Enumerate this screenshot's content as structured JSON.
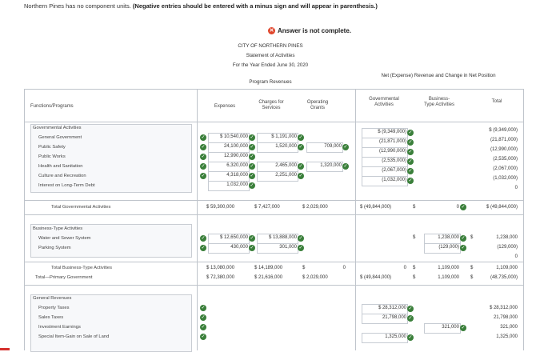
{
  "instructions": {
    "text": "Northern Pines has no component units.",
    "bold": "(Negative entries should be entered with a minus sign and will appear in parenthesis.)"
  },
  "banner": "Answer is not complete.",
  "statement": {
    "entity": "CITY OF NORTHERN PINES",
    "title": "Statement of Activities",
    "period": "For the Year Ended June 30, 2020",
    "program_revenues": "Program Revenues",
    "net_section": "Net (Expense) Revenue and Change in Net Position"
  },
  "columns": {
    "functions": "Functions/Programs",
    "expenses": "Expenses",
    "charges": [
      "Charges for",
      "Services"
    ],
    "operating": [
      "Operating",
      "Grants"
    ],
    "governmental": [
      "Governmental",
      "Activities"
    ],
    "business": [
      "Business-",
      "Type Activities"
    ],
    "total": "Total"
  },
  "gov": {
    "header": "Governmental Activities",
    "rows": [
      {
        "label": "General Government",
        "expenses": "$ 10,540,000",
        "charges": "$ 1,191,000",
        "operating": "",
        "gov": "$ (9,349,000)",
        "total": "$ (9,349,000)"
      },
      {
        "label": "Public Safety",
        "expenses": "24,100,000",
        "charges": "1,520,000",
        "operating": "709,000",
        "gov": "(21,871,000)",
        "total": "(21,871,000)"
      },
      {
        "label": "Public Works",
        "expenses": "12,990,000",
        "charges": "",
        "operating": "",
        "gov": "(12,990,000)",
        "total": "(12,990,000)"
      },
      {
        "label": "Health and Sanitation",
        "expenses": "6,320,000",
        "charges": "2,465,000",
        "operating": "1,320,000",
        "gov": "(2,535,000)",
        "total": "(2,535,000)"
      },
      {
        "label": "Culture and Recreation",
        "expenses": "4,318,000",
        "charges": "2,251,000",
        "operating": "",
        "gov": "(2,067,000)",
        "total": "(2,067,000)"
      },
      {
        "label": "Interest on Long-Term Debt",
        "expenses": "1,032,000",
        "charges": "",
        "operating": "",
        "gov": "(1,032,000)",
        "total": "(1,032,000)"
      }
    ],
    "extra_total": "0",
    "total_label": "Total Governmental Activities",
    "total": {
      "expenses": "$ 59,300,000",
      "charges": "$ 7,427,000",
      "operating": "$ 2,029,000",
      "gov": "$ (49,844,000)",
      "biz": "$",
      "biz_val": "0",
      "total": "$ (49,844,000)"
    }
  },
  "biz": {
    "header": "Business-Type Activities",
    "rows": [
      {
        "label": "Water and Sewer System",
        "expenses": "$ 12,650,000",
        "charges": "$ 13,888,000",
        "biz_prefix": "$",
        "biz": "1,238,000",
        "total_prefix": "$",
        "total": "1,238,000"
      },
      {
        "label": "Parking System",
        "expenses": "430,000",
        "charges": "301,000",
        "biz_prefix": "",
        "biz": "(129,000)",
        "total_prefix": "",
        "total": "(129,000)"
      }
    ],
    "extra_total": "0",
    "total_label": "Total Business-Type Activities",
    "total": {
      "expenses": "$ 13,080,000",
      "charges": "$ 14,189,000",
      "operating_prefix": "$",
      "operating": "0",
      "gov": "0",
      "biz_prefix": "$",
      "biz": "1,109,000",
      "total_prefix": "$",
      "total": "1,109,000"
    },
    "primary_label": "Total—Primary Government",
    "primary": {
      "expenses": "$ 72,380,000",
      "charges": "$ 21,616,000",
      "operating": "$ 2,029,000",
      "gov": "$ (49,844,000)",
      "biz_prefix": "$",
      "biz": "1,109,000",
      "total_prefix": "$",
      "total": "(48,735,000)"
    }
  },
  "general": {
    "header": "General Revenues",
    "rows": [
      {
        "label": "Property Taxes",
        "gov": "$ 28,312,000",
        "biz": "",
        "total": "$ 28,312,000"
      },
      {
        "label": "Sales Taxes",
        "gov": "21,798,000",
        "biz": "",
        "total": "21,798,000"
      },
      {
        "label": "Investment Earnings",
        "gov": "",
        "biz": "321,000",
        "total": "321,000"
      },
      {
        "label": "Special Item-Gain on Sale of Land",
        "gov": "1,325,000",
        "biz": "",
        "total": "1,325,000"
      }
    ]
  },
  "colors": {
    "check": "#3a7f3a",
    "error": "#e0452b",
    "accent_bar": "#d5302c"
  }
}
